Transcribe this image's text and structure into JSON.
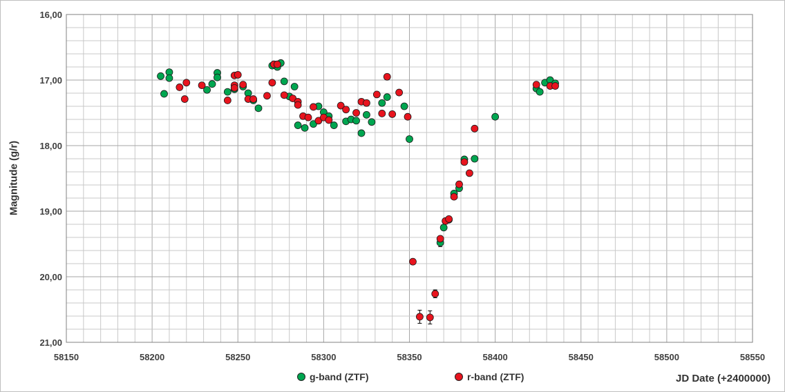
{
  "chart_data": {
    "type": "scatter",
    "ylabel": "Magnitude (g/r)",
    "xlabel": "JD Date (+2400000)",
    "xlim": [
      58150,
      58550
    ],
    "ylim": [
      21.0,
      16.0
    ],
    "y_inverted": true,
    "grid": true,
    "legend_position": "bottom",
    "x_ticks": [
      "58150",
      "58200",
      "58250",
      "58300",
      "58350",
      "58400",
      "58450",
      "58500",
      "58550"
    ],
    "y_ticks": [
      "16,00",
      "17,00",
      "18,00",
      "19,00",
      "20,00",
      "21,00"
    ],
    "series": [
      {
        "name": "g-band (ZTF)",
        "color": "#00a650",
        "points": [
          [
            58205,
            16.94
          ],
          [
            58207,
            17.21
          ],
          [
            58210,
            16.88
          ],
          [
            58210,
            16.97
          ],
          [
            58232,
            17.15
          ],
          [
            58235,
            17.06
          ],
          [
            58238,
            16.89
          ],
          [
            58238,
            16.96
          ],
          [
            58244,
            17.18
          ],
          [
            58248,
            17.14
          ],
          [
            58253,
            17.1
          ],
          [
            58256,
            17.2
          ],
          [
            58259,
            17.31
          ],
          [
            58262,
            17.43
          ],
          [
            58270,
            16.78
          ],
          [
            58273,
            16.8
          ],
          [
            58275,
            16.74
          ],
          [
            58277,
            17.02
          ],
          [
            58280,
            17.25
          ],
          [
            58283,
            17.1
          ],
          [
            58285,
            17.69
          ],
          [
            58289,
            17.73
          ],
          [
            58294,
            17.67
          ],
          [
            58297,
            17.4
          ],
          [
            58300,
            17.49
          ],
          [
            58303,
            17.55
          ],
          [
            58306,
            17.69
          ],
          [
            58313,
            17.63
          ],
          [
            58316,
            17.6
          ],
          [
            58319,
            17.62
          ],
          [
            58322,
            17.81
          ],
          [
            58325,
            17.53
          ],
          [
            58328,
            17.64
          ],
          [
            58334,
            17.35
          ],
          [
            58337,
            17.26
          ],
          [
            58347,
            17.4
          ],
          [
            58350,
            17.9
          ],
          [
            58368,
            19.48
          ],
          [
            58370,
            19.25
          ],
          [
            58373,
            19.13
          ],
          [
            58376,
            18.73
          ],
          [
            58379,
            18.65
          ],
          [
            58382,
            18.21
          ],
          [
            58388,
            18.2
          ],
          [
            58400,
            17.56
          ],
          [
            58424,
            17.13
          ],
          [
            58426,
            17.18
          ],
          [
            58429,
            17.04
          ],
          [
            58432,
            17.0
          ],
          [
            58435,
            17.05
          ]
        ],
        "errors": {
          "58368": 0.06
        }
      },
      {
        "name": "r-band (ZTF)",
        "color": "#e8141e",
        "points": [
          [
            58216,
            17.11
          ],
          [
            58219,
            17.29
          ],
          [
            58220,
            17.04
          ],
          [
            58229,
            17.08
          ],
          [
            58244,
            17.31
          ],
          [
            58248,
            16.93
          ],
          [
            58248,
            17.08
          ],
          [
            58248,
            17.12
          ],
          [
            58250,
            16.92
          ],
          [
            58253,
            17.07
          ],
          [
            58256,
            17.29
          ],
          [
            58259,
            17.29
          ],
          [
            58267,
            17.24
          ],
          [
            58270,
            17.04
          ],
          [
            58271,
            16.76
          ],
          [
            58273,
            16.76
          ],
          [
            58277,
            17.23
          ],
          [
            58282,
            17.28
          ],
          [
            58285,
            17.33
          ],
          [
            58285,
            17.38
          ],
          [
            58288,
            17.55
          ],
          [
            58291,
            17.57
          ],
          [
            58294,
            17.41
          ],
          [
            58297,
            17.62
          ],
          [
            58300,
            17.57
          ],
          [
            58303,
            17.61
          ],
          [
            58310,
            17.39
          ],
          [
            58313,
            17.45
          ],
          [
            58319,
            17.5
          ],
          [
            58322,
            17.33
          ],
          [
            58325,
            17.35
          ],
          [
            58331,
            17.22
          ],
          [
            58334,
            17.51
          ],
          [
            58337,
            16.95
          ],
          [
            58340,
            17.52
          ],
          [
            58344,
            17.19
          ],
          [
            58349,
            17.56
          ],
          [
            58352,
            19.77
          ],
          [
            58356,
            20.61
          ],
          [
            58362,
            20.62
          ],
          [
            58365,
            20.26
          ],
          [
            58368,
            19.42
          ],
          [
            58371,
            19.15
          ],
          [
            58373,
            19.12
          ],
          [
            58376,
            18.78
          ],
          [
            58379,
            18.59
          ],
          [
            58382,
            18.25
          ],
          [
            58385,
            18.42
          ],
          [
            58388,
            17.74
          ],
          [
            58424,
            17.07
          ],
          [
            58432,
            17.09
          ],
          [
            58435,
            17.09
          ]
        ],
        "errors": {
          "58352": 0.04,
          "58356": 0.1,
          "58362": 0.1,
          "58365": 0.06
        }
      }
    ]
  },
  "legend": {
    "g_label": "g-band (ZTF)",
    "r_label": "r-band (ZTF)"
  },
  "axes": {
    "y_title": "Magnitude (g/r)",
    "x_title": "JD Date (+2400000)"
  }
}
